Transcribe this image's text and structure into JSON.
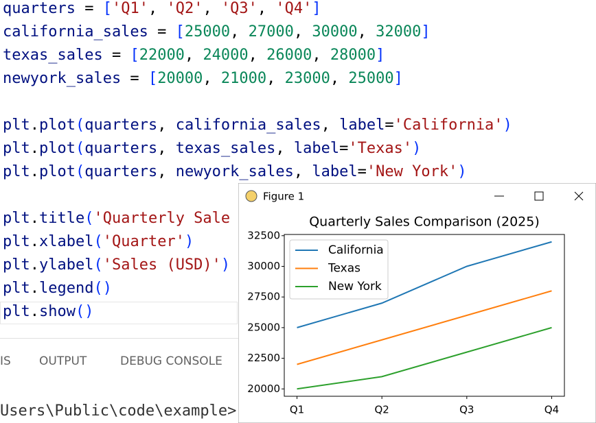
{
  "editor": {
    "lines": [
      [
        "quarters",
        " = ",
        "[",
        "'Q1'",
        ", ",
        "'Q2'",
        ", ",
        "'Q3'",
        ", ",
        "'Q4'",
        "]"
      ],
      [
        "california_sales",
        " = ",
        "[",
        "25000",
        ", ",
        "27000",
        ", ",
        "30000",
        ", ",
        "32000",
        "]"
      ],
      [
        "texas_sales",
        " = ",
        "[",
        "22000",
        ", ",
        "24000",
        ", ",
        "26000",
        ", ",
        "28000",
        "]"
      ],
      [
        "newyork_sales",
        " = ",
        "[",
        "20000",
        ", ",
        "21000",
        ", ",
        "23000",
        ", ",
        "25000",
        "]"
      ],
      [],
      [
        "plt",
        ".",
        "plot",
        "(",
        "quarters",
        ", ",
        "california_sales",
        ", ",
        "label",
        "=",
        "'California'",
        ")"
      ],
      [
        "plt",
        ".",
        "plot",
        "(",
        "quarters",
        ", ",
        "texas_sales",
        ", ",
        "label",
        "=",
        "'Texas'",
        ")"
      ],
      [
        "plt",
        ".",
        "plot",
        "(",
        "quarters",
        ", ",
        "newyork_sales",
        ", ",
        "label",
        "=",
        "'New York'",
        ")"
      ],
      [],
      [
        "plt",
        ".",
        "title",
        "(",
        "'Quarterly Sale"
      ],
      [
        "plt",
        ".",
        "xlabel",
        "(",
        "'Quarter'",
        ")"
      ],
      [
        "plt",
        ".",
        "ylabel",
        "(",
        "'Sales (USD)'",
        ")"
      ],
      [
        "plt",
        ".",
        "legend",
        "()"
      ],
      [
        "plt",
        ".",
        "show",
        "()"
      ]
    ]
  },
  "panel": {
    "tabs": [
      "IS",
      "OUTPUT",
      "DEBUG CONSOLE"
    ],
    "terminal": "Users\\Public\\code\\example>"
  },
  "window": {
    "title": "Figure 1"
  },
  "chart_data": {
    "type": "line",
    "title": "Quarterly Sales Comparison (2025)",
    "categories": [
      "Q1",
      "Q2",
      "Q3",
      "Q4"
    ],
    "series": [
      {
        "name": "California",
        "color": "#1f77b4",
        "values": [
          25000,
          27000,
          30000,
          32000
        ]
      },
      {
        "name": "Texas",
        "color": "#ff7f0e",
        "values": [
          22000,
          24000,
          26000,
          28000
        ]
      },
      {
        "name": "New York",
        "color": "#2ca02c",
        "values": [
          20000,
          21000,
          23000,
          25000
        ]
      }
    ],
    "ylim": [
      19400,
      32600
    ],
    "yticks": [
      20000,
      22500,
      25000,
      27500,
      30000,
      32500
    ],
    "legend": "upper left",
    "grid": false
  }
}
